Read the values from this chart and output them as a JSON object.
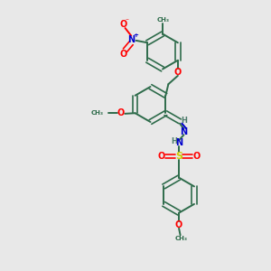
{
  "background_color": "#e8e8e8",
  "bond_color": "#2d6b4a",
  "atom_colors": {
    "O": "#ff0000",
    "N": "#0000cc",
    "S": "#cccc00",
    "H": "#4a7a6a",
    "C": "#2d6b4a"
  },
  "figsize": [
    3.0,
    3.0
  ],
  "dpi": 100,
  "xlim": [
    0,
    10
  ],
  "ylim": [
    0,
    10
  ]
}
